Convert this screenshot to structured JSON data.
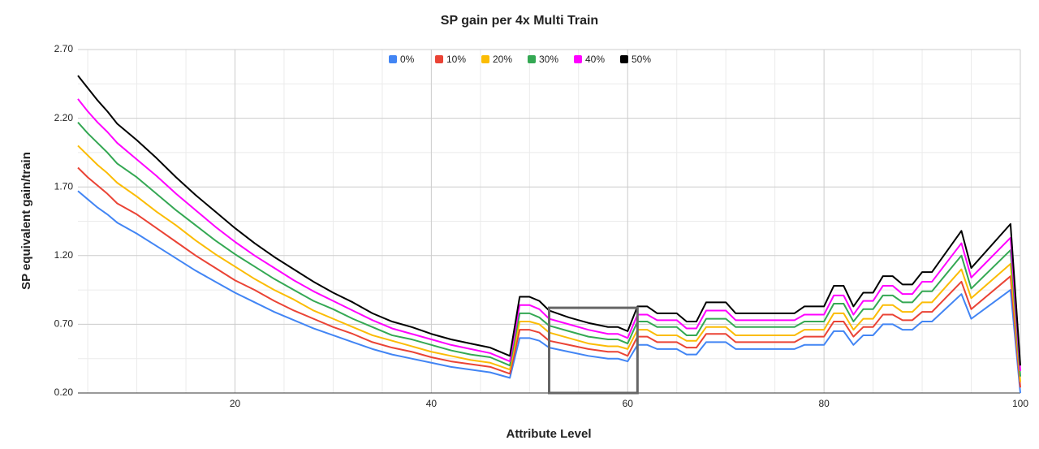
{
  "chart_data": {
    "type": "line",
    "title": "SP gain per 4x Multi Train",
    "x_label": "Attribute Level",
    "y_label": "SP equivalent gain/train",
    "x": [
      4,
      5,
      6,
      7,
      8,
      10,
      12,
      14,
      16,
      18,
      20,
      22,
      24,
      26,
      28,
      30,
      32,
      34,
      36,
      38,
      40,
      42,
      44,
      46,
      48,
      49,
      50,
      51,
      52,
      54,
      56,
      58,
      59,
      60,
      61,
      62,
      63,
      65,
      66,
      67,
      68,
      70,
      71,
      77,
      78,
      80,
      81,
      82,
      83,
      84,
      85,
      86,
      87,
      88,
      89,
      90,
      91,
      94,
      95,
      99,
      100
    ],
    "series": [
      {
        "name": "0%",
        "color": "#4285f4",
        "values": [
          1.67,
          1.61,
          1.55,
          1.5,
          1.44,
          1.36,
          1.27,
          1.18,
          1.09,
          1.01,
          0.93,
          0.86,
          0.79,
          0.73,
          0.67,
          0.62,
          0.57,
          0.52,
          0.48,
          0.45,
          0.42,
          0.39,
          0.37,
          0.35,
          0.31,
          0.6,
          0.6,
          0.58,
          0.53,
          0.5,
          0.47,
          0.45,
          0.45,
          0.43,
          0.55,
          0.55,
          0.52,
          0.52,
          0.48,
          0.48,
          0.57,
          0.57,
          0.52,
          0.52,
          0.55,
          0.55,
          0.65,
          0.65,
          0.55,
          0.62,
          0.62,
          0.7,
          0.7,
          0.66,
          0.66,
          0.72,
          0.72,
          0.92,
          0.74,
          0.95,
          0.2
        ]
      },
      {
        "name": "10%",
        "color": "#ea4335",
        "values": [
          1.84,
          1.77,
          1.71,
          1.65,
          1.58,
          1.5,
          1.4,
          1.3,
          1.2,
          1.11,
          1.02,
          0.95,
          0.87,
          0.8,
          0.74,
          0.68,
          0.63,
          0.57,
          0.53,
          0.5,
          0.46,
          0.43,
          0.41,
          0.39,
          0.34,
          0.66,
          0.66,
          0.64,
          0.58,
          0.55,
          0.52,
          0.5,
          0.5,
          0.47,
          0.61,
          0.61,
          0.57,
          0.57,
          0.53,
          0.53,
          0.63,
          0.63,
          0.57,
          0.57,
          0.61,
          0.61,
          0.72,
          0.72,
          0.61,
          0.68,
          0.68,
          0.77,
          0.77,
          0.73,
          0.73,
          0.79,
          0.79,
          1.01,
          0.81,
          1.05,
          0.24
        ]
      },
      {
        "name": "20%",
        "color": "#fbbc04",
        "values": [
          2.0,
          1.93,
          1.86,
          1.8,
          1.73,
          1.63,
          1.52,
          1.42,
          1.31,
          1.21,
          1.12,
          1.03,
          0.95,
          0.88,
          0.8,
          0.74,
          0.68,
          0.62,
          0.58,
          0.54,
          0.5,
          0.47,
          0.44,
          0.42,
          0.37,
          0.72,
          0.72,
          0.7,
          0.64,
          0.6,
          0.56,
          0.54,
          0.54,
          0.52,
          0.66,
          0.66,
          0.62,
          0.62,
          0.58,
          0.58,
          0.68,
          0.68,
          0.62,
          0.62,
          0.66,
          0.66,
          0.78,
          0.78,
          0.66,
          0.74,
          0.74,
          0.84,
          0.84,
          0.79,
          0.79,
          0.86,
          0.86,
          1.1,
          0.89,
          1.14,
          0.28
        ]
      },
      {
        "name": "30%",
        "color": "#34a853",
        "values": [
          2.17,
          2.09,
          2.02,
          1.95,
          1.87,
          1.77,
          1.65,
          1.53,
          1.42,
          1.31,
          1.21,
          1.12,
          1.03,
          0.95,
          0.87,
          0.81,
          0.74,
          0.68,
          0.62,
          0.59,
          0.55,
          0.51,
          0.48,
          0.46,
          0.4,
          0.78,
          0.78,
          0.75,
          0.69,
          0.65,
          0.61,
          0.59,
          0.59,
          0.56,
          0.72,
          0.72,
          0.68,
          0.68,
          0.62,
          0.62,
          0.74,
          0.74,
          0.68,
          0.68,
          0.72,
          0.72,
          0.85,
          0.85,
          0.72,
          0.81,
          0.81,
          0.91,
          0.91,
          0.86,
          0.86,
          0.94,
          0.94,
          1.2,
          0.96,
          1.24,
          0.32
        ]
      },
      {
        "name": "40%",
        "color": "#ff00ff",
        "values": [
          2.34,
          2.25,
          2.17,
          2.1,
          2.02,
          1.9,
          1.78,
          1.65,
          1.53,
          1.41,
          1.3,
          1.2,
          1.11,
          1.02,
          0.94,
          0.87,
          0.8,
          0.73,
          0.67,
          0.63,
          0.59,
          0.55,
          0.52,
          0.49,
          0.43,
          0.84,
          0.84,
          0.81,
          0.74,
          0.7,
          0.66,
          0.63,
          0.63,
          0.6,
          0.77,
          0.77,
          0.73,
          0.73,
          0.67,
          0.67,
          0.8,
          0.8,
          0.73,
          0.73,
          0.77,
          0.77,
          0.91,
          0.91,
          0.77,
          0.87,
          0.87,
          0.98,
          0.98,
          0.92,
          0.92,
          1.01,
          1.01,
          1.29,
          1.04,
          1.33,
          0.36
        ]
      },
      {
        "name": "50%",
        "color": "#000000",
        "values": [
          2.51,
          2.42,
          2.33,
          2.25,
          2.16,
          2.04,
          1.91,
          1.77,
          1.64,
          1.52,
          1.4,
          1.29,
          1.19,
          1.1,
          1.01,
          0.93,
          0.86,
          0.78,
          0.72,
          0.68,
          0.63,
          0.59,
          0.56,
          0.53,
          0.47,
          0.9,
          0.9,
          0.87,
          0.8,
          0.75,
          0.71,
          0.68,
          0.68,
          0.65,
          0.83,
          0.83,
          0.78,
          0.78,
          0.72,
          0.72,
          0.86,
          0.86,
          0.78,
          0.78,
          0.83,
          0.83,
          0.98,
          0.98,
          0.83,
          0.93,
          0.93,
          1.05,
          1.05,
          0.99,
          0.99,
          1.08,
          1.08,
          1.38,
          1.11,
          1.43,
          0.4
        ]
      }
    ],
    "xlim": [
      4,
      100
    ],
    "ylim": [
      0.2,
      2.7
    ],
    "xticks": [
      20,
      40,
      60,
      80,
      100
    ],
    "yticks": [
      {
        "value": 0.2,
        "label": "0.20"
      },
      {
        "value": 0.7,
        "label": "0.70"
      },
      {
        "value": 1.2,
        "label": "1.20"
      },
      {
        "value": 1.7,
        "label": "1.70"
      },
      {
        "value": 2.2,
        "label": "2.20"
      },
      {
        "value": 2.7,
        "label": "2.70"
      }
    ],
    "xminorticks": [
      5,
      10,
      15,
      25,
      30,
      35,
      45,
      50,
      55,
      65,
      70,
      75,
      85,
      90,
      95
    ],
    "yminorticks": [
      0.45,
      0.95,
      1.45,
      1.95,
      2.45
    ],
    "grid": true,
    "legend": "top",
    "highlight_box": {
      "x": [
        52,
        61
      ],
      "y": [
        0.2,
        0.82
      ],
      "color": "#666666"
    }
  }
}
